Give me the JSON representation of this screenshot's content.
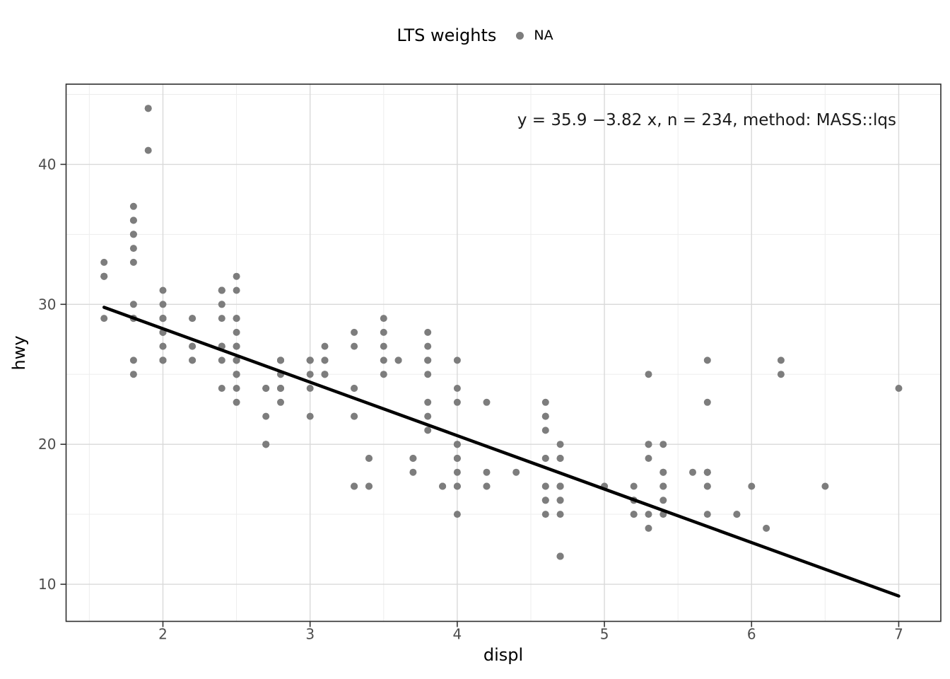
{
  "chart_data": {
    "type": "scatter",
    "xlabel": "displ",
    "ylabel": "hwy",
    "legend": {
      "position": "top",
      "title": "LTS weights",
      "entries": [
        {
          "label": "NA",
          "color": "#7d7d7d"
        }
      ]
    },
    "annotation": "y = 35.9 −3.82 x, n = 234, method: MASS::lqs",
    "n": 234,
    "xlim": [
      1.342,
      7.286
    ],
    "ylim": [
      7.35,
      45.73
    ],
    "x_ticks": [
      2,
      3,
      4,
      5,
      6,
      7
    ],
    "y_ticks": [
      10,
      20,
      30,
      40
    ],
    "x_minor": [
      1.5,
      2.5,
      3.5,
      4.5,
      5.5,
      6.5
    ],
    "y_minor": [
      15,
      25,
      35,
      45
    ],
    "grid": true,
    "fit_line": {
      "intercept": 35.9,
      "slope": -3.82,
      "x_start": 1.6,
      "x_end": 7.0
    },
    "point_radius": 5,
    "colors": {
      "point": "#7d7d7d",
      "line": "#000000",
      "grid_major": "#d9d9d9",
      "grid_minor": "#ededed",
      "panel_border": "#2e2e2e",
      "tick": "#333333",
      "tick_label": "#4d4d4d",
      "panel_bg": "#ffffff"
    },
    "points": [
      [
        1.8,
        29
      ],
      [
        1.8,
        29
      ],
      [
        2,
        31
      ],
      [
        2,
        30
      ],
      [
        2.8,
        26
      ],
      [
        2.8,
        26
      ],
      [
        3.1,
        27
      ],
      [
        1.8,
        26
      ],
      [
        1.8,
        25
      ],
      [
        2,
        28
      ],
      [
        2,
        27
      ],
      [
        2.8,
        25
      ],
      [
        2.8,
        25
      ],
      [
        3.1,
        25
      ],
      [
        3.1,
        25
      ],
      [
        2.8,
        24
      ],
      [
        3.1,
        25
      ],
      [
        4.2,
        23
      ],
      [
        5.3,
        20
      ],
      [
        5.3,
        15
      ],
      [
        5.3,
        20
      ],
      [
        5.7,
        17
      ],
      [
        6,
        17
      ],
      [
        5.7,
        26
      ],
      [
        5.7,
        23
      ],
      [
        6.2,
        26
      ],
      [
        6.2,
        25
      ],
      [
        7,
        24
      ],
      [
        5.3,
        19
      ],
      [
        5.3,
        14
      ],
      [
        5.7,
        15
      ],
      [
        6.5,
        17
      ],
      [
        2.4,
        27
      ],
      [
        2.4,
        30
      ],
      [
        3.1,
        26
      ],
      [
        3.5,
        29
      ],
      [
        3.6,
        26
      ],
      [
        2.4,
        24
      ],
      [
        3,
        24
      ],
      [
        3.3,
        22
      ],
      [
        3.3,
        22
      ],
      [
        3.3,
        24
      ],
      [
        3.3,
        24
      ],
      [
        3.3,
        17
      ],
      [
        3.8,
        22
      ],
      [
        3.8,
        21
      ],
      [
        3.8,
        23
      ],
      [
        4,
        23
      ],
      [
        3.7,
        19
      ],
      [
        3.7,
        18
      ],
      [
        3.9,
        17
      ],
      [
        3.9,
        17
      ],
      [
        4.7,
        19
      ],
      [
        4.7,
        19
      ],
      [
        4.7,
        12
      ],
      [
        5.2,
        17
      ],
      [
        5.2,
        15
      ],
      [
        3.9,
        17
      ],
      [
        4.7,
        17
      ],
      [
        4.7,
        12
      ],
      [
        4.7,
        17
      ],
      [
        5.2,
        16
      ],
      [
        5.7,
        18
      ],
      [
        5.9,
        15
      ],
      [
        4.7,
        16
      ],
      [
        4.7,
        12
      ],
      [
        4.7,
        17
      ],
      [
        4.7,
        17
      ],
      [
        4.7,
        16
      ],
      [
        4.7,
        12
      ],
      [
        5.2,
        15
      ],
      [
        5.2,
        16
      ],
      [
        5.7,
        17
      ],
      [
        5.9,
        15
      ],
      [
        4.6,
        17
      ],
      [
        5.4,
        17
      ],
      [
        5.4,
        18
      ],
      [
        4,
        17
      ],
      [
        4,
        19
      ],
      [
        4,
        17
      ],
      [
        4,
        19
      ],
      [
        4.6,
        19
      ],
      [
        5,
        17
      ],
      [
        4.2,
        17
      ],
      [
        4.2,
        17
      ],
      [
        4.6,
        16
      ],
      [
        4.6,
        16
      ],
      [
        4.6,
        17
      ],
      [
        5.4,
        15
      ],
      [
        5.4,
        17
      ],
      [
        3.8,
        26
      ],
      [
        3.8,
        25
      ],
      [
        4,
        26
      ],
      [
        4,
        24
      ],
      [
        4.6,
        21
      ],
      [
        4.6,
        22
      ],
      [
        4.6,
        23
      ],
      [
        4.6,
        22
      ],
      [
        5.4,
        20
      ],
      [
        1.6,
        33
      ],
      [
        1.6,
        32
      ],
      [
        1.6,
        32
      ],
      [
        1.6,
        29
      ],
      [
        1.6,
        32
      ],
      [
        1.8,
        34
      ],
      [
        1.8,
        36
      ],
      [
        1.8,
        36
      ],
      [
        2,
        29
      ],
      [
        2.4,
        26
      ],
      [
        2.4,
        27
      ],
      [
        2.4,
        30
      ],
      [
        2.4,
        31
      ],
      [
        2.5,
        26
      ],
      [
        2.5,
        26
      ],
      [
        3.3,
        28
      ],
      [
        2,
        26
      ],
      [
        2,
        29
      ],
      [
        2,
        28
      ],
      [
        2,
        27
      ],
      [
        2.7,
        24
      ],
      [
        2.7,
        24
      ],
      [
        2.7,
        24
      ],
      [
        3,
        22
      ],
      [
        3.7,
        19
      ],
      [
        4,
        20
      ],
      [
        4.7,
        17
      ],
      [
        4.7,
        12
      ],
      [
        4.7,
        19
      ],
      [
        5.7,
        18
      ],
      [
        6.1,
        14
      ],
      [
        4,
        15
      ],
      [
        4.2,
        18
      ],
      [
        4.4,
        18
      ],
      [
        4.6,
        15
      ],
      [
        5.4,
        17
      ],
      [
        5.4,
        16
      ],
      [
        5.4,
        18
      ],
      [
        4,
        17
      ],
      [
        4,
        19
      ],
      [
        4.6,
        19
      ],
      [
        5,
        17
      ],
      [
        2.4,
        29
      ],
      [
        2.4,
        27
      ],
      [
        2.5,
        31
      ],
      [
        2.5,
        32
      ],
      [
        3.5,
        27
      ],
      [
        3.5,
        26
      ],
      [
        3,
        26
      ],
      [
        3,
        25
      ],
      [
        3.5,
        25
      ],
      [
        3.3,
        17
      ],
      [
        3.3,
        17
      ],
      [
        4,
        20
      ],
      [
        5.6,
        18
      ],
      [
        3.1,
        26
      ],
      [
        3.8,
        26
      ],
      [
        3.8,
        27
      ],
      [
        3.8,
        28
      ],
      [
        5.3,
        25
      ],
      [
        2.5,
        25
      ],
      [
        2.5,
        24
      ],
      [
        2.5,
        27
      ],
      [
        2.5,
        25
      ],
      [
        2.5,
        26
      ],
      [
        2.5,
        23
      ],
      [
        2.2,
        26
      ],
      [
        2.2,
        26
      ],
      [
        2.5,
        26
      ],
      [
        2.5,
        26
      ],
      [
        2.5,
        25
      ],
      [
        2.5,
        27
      ],
      [
        2.5,
        25
      ],
      [
        2.5,
        27
      ],
      [
        2.7,
        20
      ],
      [
        2.7,
        20
      ],
      [
        3.4,
        19
      ],
      [
        3.4,
        17
      ],
      [
        4,
        20
      ],
      [
        4.7,
        17
      ],
      [
        2.2,
        29
      ],
      [
        2.2,
        27
      ],
      [
        2.4,
        31
      ],
      [
        2.4,
        31
      ],
      [
        3,
        26
      ],
      [
        3,
        26
      ],
      [
        3.5,
        28
      ],
      [
        2.2,
        27
      ],
      [
        2.2,
        29
      ],
      [
        2.4,
        31
      ],
      [
        2.4,
        31
      ],
      [
        3,
        26
      ],
      [
        3,
        26
      ],
      [
        3.3,
        27
      ],
      [
        1.8,
        30
      ],
      [
        1.8,
        33
      ],
      [
        1.8,
        35
      ],
      [
        1.8,
        37
      ],
      [
        1.8,
        35
      ],
      [
        4.7,
        15
      ],
      [
        5.7,
        18
      ],
      [
        2.7,
        20
      ],
      [
        2.7,
        20
      ],
      [
        2.7,
        22
      ],
      [
        3.4,
        17
      ],
      [
        3.4,
        19
      ],
      [
        4,
        18
      ],
      [
        4.7,
        20
      ],
      [
        2,
        29
      ],
      [
        2,
        26
      ],
      [
        2,
        29
      ],
      [
        2,
        29
      ],
      [
        2.8,
        24
      ],
      [
        1.9,
        44
      ],
      [
        2,
        29
      ],
      [
        2,
        26
      ],
      [
        2,
        29
      ],
      [
        2,
        29
      ],
      [
        2.5,
        29
      ],
      [
        2.5,
        29
      ],
      [
        2.8,
        23
      ],
      [
        2.8,
        24
      ],
      [
        1.9,
        44
      ],
      [
        1.9,
        41
      ],
      [
        2,
        29
      ],
      [
        2,
        26
      ],
      [
        2.5,
        28
      ],
      [
        2.5,
        29
      ],
      [
        1.8,
        29
      ],
      [
        1.8,
        29
      ],
      [
        2,
        28
      ],
      [
        2,
        29
      ],
      [
        2.8,
        26
      ],
      [
        2.8,
        26
      ],
      [
        3.6,
        26
      ]
    ]
  }
}
